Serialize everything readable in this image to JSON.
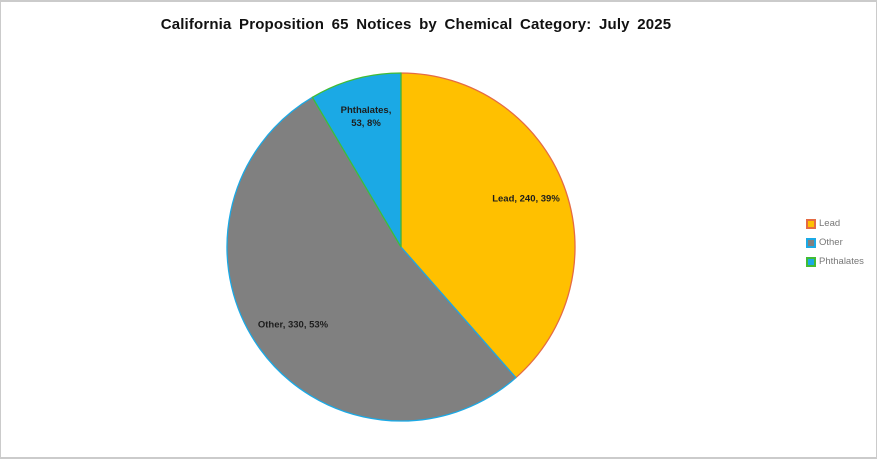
{
  "chart": {
    "title": "California Proposition 65 Notices by Chemical Category: July 2025"
  },
  "chart_data": {
    "type": "pie",
    "title": "California Proposition 65 Notices by Chemical Category: July 2025",
    "start_angle_deg": 0,
    "direction": "clockwise",
    "categories": [
      "Lead",
      "Other",
      "Phthalates"
    ],
    "values": [
      240,
      330,
      53
    ],
    "percents": [
      39,
      53,
      8
    ],
    "slices": [
      {
        "name": "Lead",
        "value": 240,
        "percent": 39,
        "fill": "#FFC000",
        "stroke": "#E56B43",
        "label_lines": [
          "Lead, 240, 39%"
        ]
      },
      {
        "name": "Other",
        "value": 330,
        "percent": 53,
        "fill": "#808080",
        "stroke": "#1BA9E5",
        "label_lines": [
          "Other, 330, 53%"
        ]
      },
      {
        "name": "Phthalates",
        "value": 53,
        "percent": 8,
        "fill": "#1BA9E5",
        "stroke": "#42BC34",
        "label_lines": [
          "Phthalates,",
          "53, 8%"
        ]
      }
    ],
    "legend": {
      "position": "right",
      "items": [
        "Lead",
        "Other",
        "Phthalates"
      ]
    },
    "label_text_color": "#1d1d1d",
    "legend_text_color": "#777777"
  }
}
